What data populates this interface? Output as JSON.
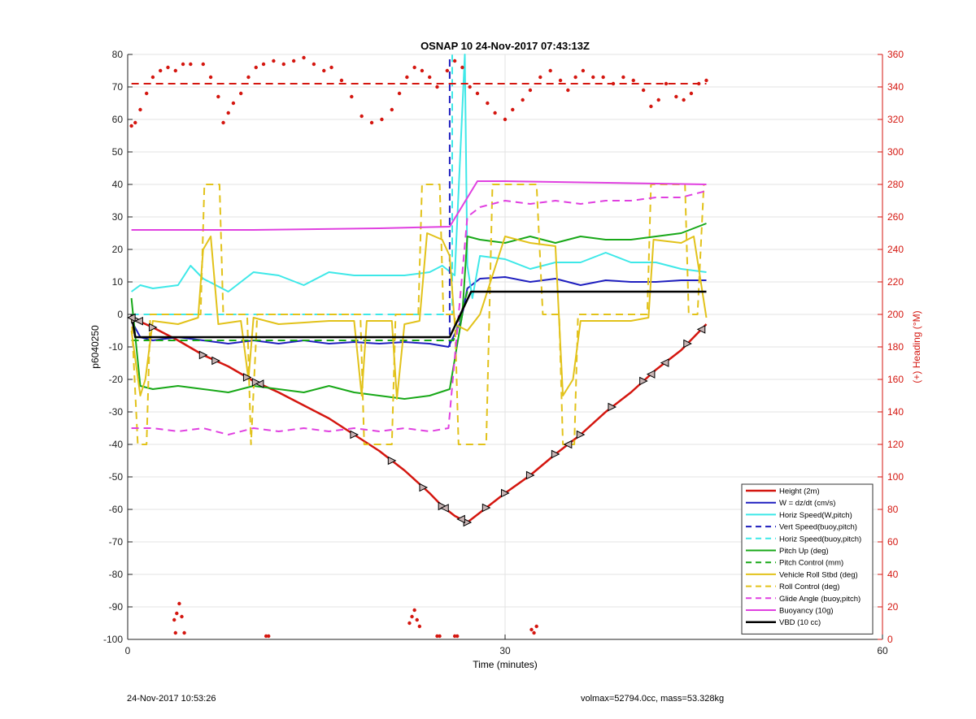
{
  "chart_data": {
    "type": "line",
    "title": "OSNAP 10 24-Nov-2017 07:43:13Z",
    "xlabel": "Time (minutes)",
    "ylabel": "p6040250",
    "y2label": "(+) Heading (°M)",
    "xlim": [
      0,
      60
    ],
    "ylim": [
      -100,
      80
    ],
    "y2lim": [
      0,
      360
    ],
    "xticks": [
      0,
      30,
      60
    ],
    "yticks": [
      -100,
      -90,
      -80,
      -70,
      -60,
      -50,
      -40,
      -30,
      -20,
      -10,
      0,
      10,
      20,
      30,
      40,
      50,
      60,
      70,
      80
    ],
    "y2ticks": [
      0,
      20,
      40,
      60,
      80,
      100,
      120,
      140,
      160,
      180,
      200,
      220,
      240,
      260,
      280,
      300,
      320,
      340,
      360
    ],
    "grid": true,
    "legend_position": "bottom-right",
    "colors": {
      "red": "#d4160f",
      "blue": "#1f1fbf",
      "cyan": "#3ee8e8",
      "green": "#18a818",
      "gold": "#e2c21a",
      "magenta": "#e040e0",
      "black": "#000000",
      "axis2": "#d4160f"
    },
    "series": [
      {
        "name": "Height (2m)",
        "color": "red",
        "dash": false,
        "width": 2.5,
        "x": [
          0.3,
          2,
          4,
          6,
          8,
          10,
          12,
          14,
          16,
          18,
          20,
          22,
          24,
          25,
          26,
          27,
          28,
          30,
          32,
          34,
          36,
          38,
          40,
          42,
          44,
          46
        ],
        "y": [
          -1,
          -4,
          -8,
          -12.5,
          -16,
          -20.5,
          -24,
          -28,
          -32,
          -37,
          -42,
          -48,
          -55,
          -59,
          -62,
          -64,
          -61,
          -55,
          -49.5,
          -43,
          -37,
          -30,
          -24,
          -17,
          -11,
          -3
        ]
      },
      {
        "name": "W = dz/dt (cm/s)",
        "color": "blue",
        "dash": false,
        "width": 2,
        "x": [
          0.3,
          1,
          2,
          4,
          6,
          8,
          10,
          12,
          14,
          16,
          18,
          20,
          22,
          24,
          25.5,
          26.5,
          27,
          28,
          30,
          32,
          34,
          36,
          38,
          40,
          42,
          44,
          46
        ],
        "y": [
          -2,
          -7,
          -8,
          -7,
          -8,
          -9,
          -8,
          -9,
          -8,
          -9,
          -8.5,
          -9,
          -8.5,
          -9,
          -10,
          -2,
          8,
          11,
          11.5,
          10,
          11,
          9,
          10.5,
          10,
          10,
          10.5,
          10.5
        ]
      },
      {
        "name": "Horiz Speed(W,pitch)",
        "color": "cyan",
        "dash": false,
        "width": 2,
        "x": [
          0.3,
          1,
          2,
          4,
          5,
          6,
          8,
          10,
          12,
          14,
          16,
          18,
          20,
          22,
          24,
          25,
          26,
          26.8,
          27,
          27.4,
          28,
          30,
          32,
          34,
          36,
          38,
          40,
          42,
          44,
          46
        ],
        "y": [
          7,
          9,
          8,
          9,
          15,
          11,
          7,
          13,
          12,
          9,
          13,
          12,
          12,
          12,
          13,
          15,
          12,
          80,
          15,
          5,
          18,
          17,
          14,
          16,
          16,
          19,
          16,
          16,
          14,
          13
        ]
      },
      {
        "name": "Vert Speed(buoy,pitch)",
        "color": "blue",
        "dash": true,
        "width": 2,
        "x": [
          25.6,
          25.6
        ],
        "y": [
          -10,
          80
        ]
      },
      {
        "name": "Horiz Speed(buoy,pitch)",
        "color": "cyan",
        "dash": true,
        "width": 2,
        "x": [
          0.3,
          25,
          25.8,
          25.8
        ],
        "y": [
          0,
          0,
          0,
          80
        ]
      },
      {
        "name": "Pitch Up (deg)",
        "color": "green",
        "dash": false,
        "width": 2,
        "x": [
          0.3,
          1,
          2,
          4,
          6,
          8,
          10,
          12,
          14,
          16,
          18,
          20,
          22,
          24,
          25.6,
          26.6,
          27,
          28,
          30,
          32,
          34,
          36,
          38,
          40,
          42,
          44,
          46
        ],
        "y": [
          5,
          -22,
          -23,
          -22,
          -23,
          -24,
          -22,
          -23,
          -24,
          -22,
          -24,
          -25,
          -26,
          -25,
          -23,
          0,
          24,
          23,
          22,
          24,
          22,
          24,
          23,
          23,
          24,
          25,
          28
        ]
      },
      {
        "name": "Pitch Control (mm)",
        "color": "green",
        "dash": true,
        "width": 2,
        "x": [
          0.3,
          25.4,
          25.9,
          27,
          46
        ],
        "y": [
          -8,
          -8,
          -8,
          7,
          7
        ]
      },
      {
        "name": "Vehicle Roll Stbd (deg)",
        "color": "gold",
        "dash": false,
        "width": 2,
        "x": [
          0.3,
          1,
          1.4,
          2,
          4,
          5.6,
          6,
          6.6,
          7.2,
          9,
          9.6,
          10,
          12,
          16,
          18,
          18.6,
          19,
          21,
          21.4,
          22,
          23.2,
          23.8,
          25,
          25.6,
          26,
          27,
          28,
          30,
          32,
          34,
          34.6,
          35.4,
          36,
          40,
          41.4,
          41.8,
          44,
          45,
          46
        ],
        "y": [
          -5,
          -25,
          -20,
          -2,
          -3,
          -1,
          20,
          24,
          -3,
          -2,
          -20,
          -1,
          -3,
          -2,
          -2,
          -25,
          -2,
          -2,
          -26,
          -3,
          -2,
          25,
          23,
          18,
          -3,
          -5,
          0,
          24,
          22,
          21,
          -25,
          -20,
          -2,
          -2,
          -1,
          23,
          22,
          24,
          -1
        ]
      },
      {
        "name": "Roll Control (deg)",
        "color": "gold",
        "dash": true,
        "width": 2,
        "x": [
          0.3,
          0.8,
          1.5,
          1.8,
          5.8,
          6.1,
          7.3,
          7.6,
          9.5,
          9.8,
          10.3,
          18.5,
          18.8,
          21,
          21.3,
          23.1,
          23.4,
          24.8,
          25.1,
          26,
          26.3,
          28.5,
          29,
          32.5,
          33,
          34.3,
          34.6,
          35.5,
          35.8,
          41.3,
          41.6,
          44.3,
          44.6,
          45.3,
          45.8,
          46
        ],
        "y": [
          0,
          -40,
          -40,
          0,
          0,
          40,
          40,
          0,
          0,
          -40,
          0,
          0,
          -40,
          -40,
          0,
          0,
          40,
          40,
          0,
          0,
          -40,
          -40,
          40,
          40,
          0,
          0,
          -40,
          -40,
          0,
          0,
          40,
          40,
          0,
          0,
          40,
          40
        ]
      },
      {
        "name": "Glide Angle (buoy,pitch)",
        "color": "magenta",
        "dash": true,
        "width": 2,
        "x": [
          0.3,
          2,
          4,
          6,
          8,
          10,
          12,
          14,
          16,
          18,
          20,
          22,
          24,
          25.5,
          27,
          28,
          30,
          32,
          34,
          36,
          38,
          40,
          42,
          44,
          46
        ],
        "y": [
          -35,
          -35,
          -36,
          -35,
          -37,
          -35,
          -36,
          -35,
          -36,
          -35,
          -36,
          -35,
          -36,
          -35,
          30,
          33,
          35,
          34,
          35,
          34,
          35,
          35,
          36,
          36,
          38
        ]
      },
      {
        "name": "Buoyancy (10g)",
        "color": "magenta",
        "dash": false,
        "width": 2,
        "x": [
          0.3,
          10,
          20,
          25.6,
          27.8,
          30,
          46
        ],
        "y": [
          26,
          26,
          26.5,
          27,
          41,
          41,
          40
        ]
      },
      {
        "name": "VBD (10 cc)",
        "color": "black",
        "dash": false,
        "width": 2.5,
        "x": [
          0.3,
          0.6,
          2,
          25.6,
          27.3,
          46
        ],
        "y": [
          0,
          -7,
          -7,
          -7,
          7,
          7
        ]
      }
    ],
    "heading": {
      "name": "Heading",
      "color": "red",
      "axis": "right",
      "reference": 342,
      "points": [
        [
          0.3,
          316
        ],
        [
          0.6,
          318
        ],
        [
          1,
          326
        ],
        [
          1.5,
          336
        ],
        [
          2,
          346
        ],
        [
          2.6,
          350
        ],
        [
          3.2,
          352
        ],
        [
          3.8,
          350
        ],
        [
          4.4,
          354
        ],
        [
          5,
          354
        ],
        [
          6,
          354
        ],
        [
          6.6,
          346
        ],
        [
          7.2,
          334
        ],
        [
          7.6,
          318
        ],
        [
          8,
          324
        ],
        [
          8.4,
          330
        ],
        [
          9,
          336
        ],
        [
          9.6,
          346
        ],
        [
          10.2,
          352
        ],
        [
          10.8,
          354
        ],
        [
          11.6,
          356
        ],
        [
          12.4,
          354
        ],
        [
          13.2,
          356
        ],
        [
          14,
          358
        ],
        [
          14.8,
          354
        ],
        [
          15.6,
          350
        ],
        [
          16.2,
          352
        ],
        [
          17,
          344
        ],
        [
          17.8,
          334
        ],
        [
          18.6,
          322
        ],
        [
          19.4,
          318
        ],
        [
          20.2,
          320
        ],
        [
          21,
          326
        ],
        [
          21.6,
          336
        ],
        [
          22.2,
          346
        ],
        [
          22.8,
          352
        ],
        [
          23.4,
          350
        ],
        [
          24,
          346
        ],
        [
          24.6,
          340
        ],
        [
          25.4,
          350
        ],
        [
          26,
          356
        ],
        [
          26.6,
          352
        ],
        [
          27.2,
          340
        ],
        [
          27.8,
          336
        ],
        [
          28.6,
          330
        ],
        [
          29.2,
          324
        ],
        [
          30,
          320
        ],
        [
          30.6,
          326
        ],
        [
          31.4,
          332
        ],
        [
          32,
          338
        ],
        [
          32.8,
          346
        ],
        [
          33.6,
          350
        ],
        [
          34.4,
          344
        ],
        [
          35,
          338
        ],
        [
          35.6,
          346
        ],
        [
          36.2,
          350
        ],
        [
          37,
          346
        ],
        [
          37.8,
          346
        ],
        [
          38.6,
          342
        ],
        [
          39.4,
          346
        ],
        [
          40.2,
          344
        ],
        [
          41,
          338
        ],
        [
          41.6,
          328
        ],
        [
          42.2,
          332
        ],
        [
          42.8,
          342
        ],
        [
          43.6,
          334
        ],
        [
          44.2,
          332
        ],
        [
          44.8,
          336
        ],
        [
          45.4,
          342
        ],
        [
          46,
          344
        ],
        [
          3.7,
          12
        ],
        [
          3.9,
          16
        ],
        [
          4.1,
          22
        ],
        [
          4.3,
          14
        ],
        [
          4.5,
          4
        ],
        [
          3.8,
          4
        ],
        [
          11,
          2
        ],
        [
          11.2,
          2
        ],
        [
          22.4,
          10
        ],
        [
          22.6,
          14
        ],
        [
          22.8,
          18
        ],
        [
          23,
          12
        ],
        [
          23.2,
          8
        ],
        [
          24.6,
          2
        ],
        [
          24.8,
          2
        ],
        [
          26,
          2
        ],
        [
          26.2,
          2
        ],
        [
          32.1,
          6
        ],
        [
          32.3,
          4
        ],
        [
          32.5,
          8
        ]
      ]
    },
    "markers": {
      "forward": [
        0.6,
        2,
        6,
        7,
        9.5,
        10.2,
        18,
        21,
        23.5,
        25,
        27,
        28.5,
        30,
        32,
        34,
        36,
        38.5,
        41,
        44.5
      ],
      "reverse": [
        0.3,
        0.9,
        10.5,
        25.2,
        26.5,
        35,
        41.6,
        42.7,
        45.6
      ]
    }
  },
  "footer": {
    "left": "24-Nov-2017 10:53:26",
    "right": "volmax=52794.0cc, mass=53.328kg"
  }
}
